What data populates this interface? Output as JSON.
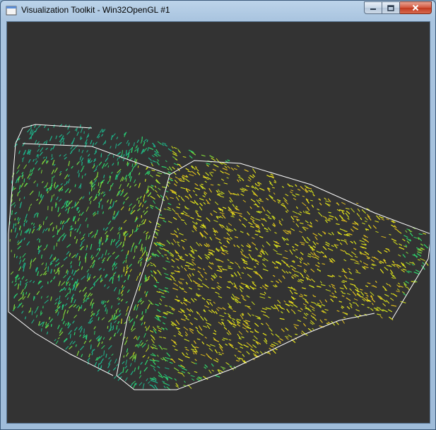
{
  "window": {
    "title": "Visualization Toolkit - Win32OpenGL #1",
    "icon": "app-window-icon",
    "buttons": {
      "minimize_icon": "minimize-icon",
      "maximize_icon": "maximize-icon",
      "close_icon": "close-icon"
    }
  },
  "viewport": {
    "background_color": "#333333",
    "outline_color": "#ffffff",
    "glyph_colors": [
      "#1fb38a",
      "#2ecf6a",
      "#7fd23a",
      "#c7d51f",
      "#e6e21a",
      "#d9b81f"
    ]
  }
}
